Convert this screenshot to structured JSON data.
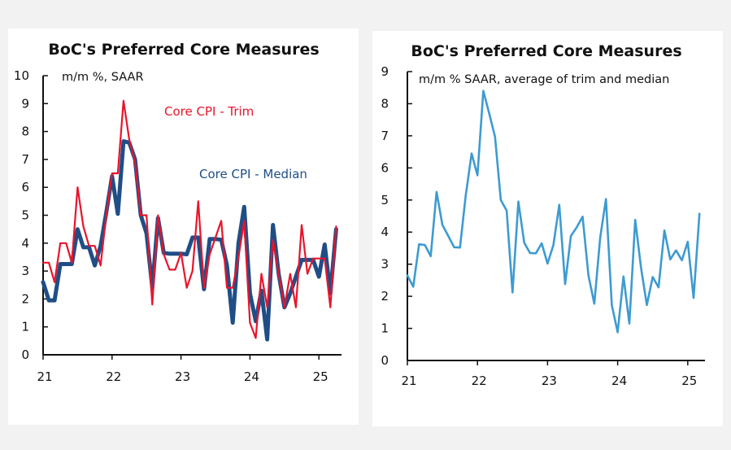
{
  "chart_data": [
    {
      "type": "line",
      "title": "BoC's Preferred Core Measures",
      "subtitle": "m/m %, SAAR",
      "xlabel": "",
      "ylabel": "",
      "ylim": [
        0,
        10
      ],
      "yticks": [
        0,
        1,
        2,
        3,
        4,
        5,
        6,
        7,
        8,
        9,
        10
      ],
      "xticks": [
        "21",
        "22",
        "23",
        "24",
        "25"
      ],
      "xlim": [
        2021.0,
        2025.33
      ],
      "x_start": 2021.0,
      "x_step_months": 1,
      "grid": false,
      "legend": "inline-labels",
      "series": [
        {
          "name": "Core CPI - Trim",
          "color": "#e8142b",
          "values": [
            3.3,
            3.3,
            2.6,
            4.0,
            4.0,
            3.3,
            6.0,
            4.6,
            3.9,
            3.9,
            3.2,
            5.0,
            6.5,
            6.5,
            9.1,
            7.7,
            6.9,
            5.0,
            5.0,
            1.8,
            5.0,
            3.6,
            3.05,
            3.05,
            3.65,
            2.4,
            3.0,
            5.5,
            2.4,
            3.6,
            4.2,
            4.8,
            2.4,
            2.4,
            3.5,
            4.8,
            1.15,
            0.6,
            2.9,
            1.7,
            4.1,
            2.9,
            1.7,
            2.9,
            1.7,
            4.65,
            2.9,
            3.45,
            3.45,
            3.45,
            1.7,
            4.6
          ]
        },
        {
          "name": "Core CPI - Median",
          "color": "#1f4e87",
          "values": [
            2.6,
            1.95,
            1.95,
            3.25,
            3.25,
            3.25,
            4.5,
            3.85,
            3.85,
            3.2,
            3.9,
            5.1,
            6.4,
            5.05,
            7.65,
            7.6,
            7.0,
            5.0,
            4.35,
            2.4,
            4.9,
            3.65,
            3.62,
            3.62,
            3.62,
            3.6,
            4.2,
            4.2,
            2.35,
            4.15,
            4.15,
            4.12,
            3.2,
            1.15,
            4.0,
            5.3,
            2.2,
            1.2,
            2.3,
            0.55,
            4.65,
            2.9,
            1.7,
            2.2,
            2.8,
            3.4,
            3.4,
            3.4,
            2.8,
            3.95,
            2.2,
            4.5
          ]
        }
      ]
    },
    {
      "type": "line",
      "title": "BoC's Preferred Core Measures",
      "subtitle": "m/m % SAAR, average of trim and median",
      "xlabel": "",
      "ylabel": "",
      "ylim": [
        0,
        9
      ],
      "yticks": [
        0,
        1,
        2,
        3,
        4,
        5,
        6,
        7,
        8,
        9
      ],
      "xticks": [
        "21",
        "22",
        "23",
        "24",
        "25"
      ],
      "xlim": [
        2021.0,
        2025.25
      ],
      "x_start": 2021.0,
      "x_step_months": 1,
      "grid": false,
      "legend": "none",
      "series": [
        {
          "name": "Average of trim and median",
          "color": "#3d9bd1",
          "values": [
            2.65,
            2.3,
            3.62,
            3.6,
            3.25,
            5.25,
            4.22,
            3.88,
            3.53,
            3.52,
            5.15,
            6.45,
            5.77,
            8.4,
            7.7,
            6.97,
            5.0,
            4.67,
            2.12,
            4.95,
            3.67,
            3.35,
            3.34,
            3.65,
            3.02,
            3.6,
            4.85,
            2.38,
            3.88,
            4.15,
            4.48,
            2.65,
            1.77,
            3.82,
            5.03,
            1.73,
            0.88,
            2.62,
            1.15,
            4.38,
            2.9,
            1.73,
            2.6,
            2.28,
            4.05,
            3.15,
            3.43,
            3.12,
            3.7,
            1.95,
            4.57
          ]
        }
      ]
    }
  ]
}
